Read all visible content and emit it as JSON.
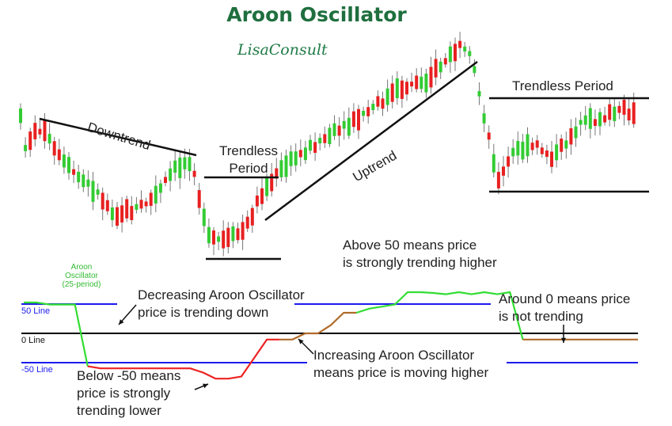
{
  "title": "Aroon Oscillator",
  "brand": "LisaConsult",
  "chart_data": {
    "type": "line",
    "title": "Aroon Oscillator",
    "colors": {
      "up_candle": "#33cc33",
      "down_candle": "#e82020",
      "wick": "#777777",
      "oscillator_bullish": "#33dd33",
      "oscillator_bearish": "#ee2222",
      "oscillator_transition": "#b06a2a",
      "level_lines": "#1a1aee",
      "zero_line": "#000000",
      "trend_lines": "#111111"
    },
    "price_series": {
      "type": "candlestick",
      "phases": [
        "Downtrend",
        "Trendless Period",
        "Uptrend",
        "Trendless Period"
      ]
    },
    "oscillator": {
      "name": "Aroon Oscillator",
      "period_label": "(25-period)",
      "level_labels": [
        "50 Line",
        "0 Line",
        "-50 Line"
      ],
      "levels": [
        50,
        0,
        -50
      ],
      "ylim": [
        -100,
        100
      ],
      "values": [
        75,
        75,
        70,
        70,
        70,
        -80,
        -85,
        -85,
        -85,
        -85,
        -85,
        -85,
        -85,
        -85,
        -95,
        -110,
        -110,
        -105,
        -60,
        -15,
        -15,
        -15,
        0,
        0,
        20,
        50,
        50,
        60,
        65,
        70,
        100,
        100,
        98,
        95,
        100,
        95,
        100,
        95,
        100,
        -15,
        -15,
        -15,
        -15,
        -15,
        -15,
        -15,
        -15,
        -15,
        -15
      ],
      "color_segments": [
        {
          "from": 0,
          "to": 5,
          "color": "bullish"
        },
        {
          "from": 5,
          "to": 20,
          "color": "bearish"
        },
        {
          "from": 20,
          "to": 26,
          "color": "transition"
        },
        {
          "from": 26,
          "to": 39,
          "color": "bullish"
        },
        {
          "from": 39,
          "to": 48,
          "color": "transition"
        }
      ]
    }
  },
  "annotations": {
    "downtrend": "Downtrend",
    "trendless_1_line1": "Trendless",
    "trendless_1_line2": "Period",
    "uptrend": "Uptrend",
    "trendless_2": "Trendless Period",
    "above50_line1": "Above 50 means price",
    "above50_line2": "is strongly trending higher",
    "osc_label_line1": "Aroon",
    "osc_label_line2": "Oscillator",
    "osc_label_line3": "(25-period)",
    "decreasing_line1": "Decreasing Aroon Oscillator",
    "decreasing_line2": "price is trending down",
    "around0_line1": "Around 0 means price",
    "around0_line2": "is not trending",
    "increasing_line1": "Increasing Aroon Oscillator",
    "increasing_line2": "means price is moving higher",
    "below50_line1": "Below -50 means",
    "below50_line2": "price is strongly",
    "below50_line3": "trending lower",
    "line_50": "50 Line",
    "line_0": "0 Line",
    "line_neg50": "-50 Line"
  }
}
